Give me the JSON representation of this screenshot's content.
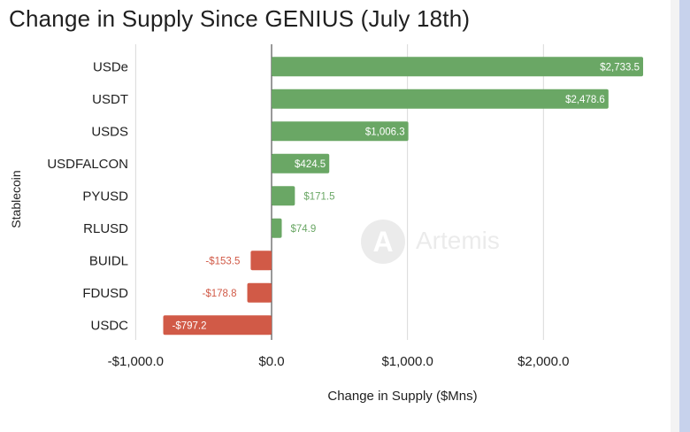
{
  "chart_data": {
    "type": "bar",
    "orientation": "horizontal",
    "title": "Change in Supply Since GENIUS (July 18th)",
    "xlabel": "Change in Supply ($Mns)",
    "ylabel": "Stablecoin",
    "categories": [
      "USDe",
      "USDT",
      "USDS",
      "USDFALCON",
      "PYUSD",
      "RLUSD",
      "BUIDL",
      "FDUSD",
      "USDC"
    ],
    "values": [
      2733.5,
      2478.6,
      1006.3,
      424.5,
      171.5,
      74.9,
      -153.5,
      -178.8,
      -797.2
    ],
    "data_labels": [
      "$2,733.5",
      "$2,478.6",
      "$1,006.3",
      "$424.5",
      "$171.5",
      "$74.9",
      "-$153.5",
      "-$178.8",
      "-$797.2"
    ],
    "xlim": [
      -1000,
      2900
    ],
    "xticks": [
      -1000,
      0,
      1000,
      2000
    ],
    "xtick_labels": [
      "-$1,000.0",
      "$0.0",
      "$1,000.0",
      "$2,000.0"
    ],
    "grid": true,
    "legend": "none",
    "colors": {
      "positive": "#6aa765",
      "negative": "#d15a47",
      "grid": "#d9d9d9",
      "zero_line": "#333333"
    }
  },
  "watermark": {
    "text": "Artemis",
    "icon": "artemis-logo-icon"
  }
}
